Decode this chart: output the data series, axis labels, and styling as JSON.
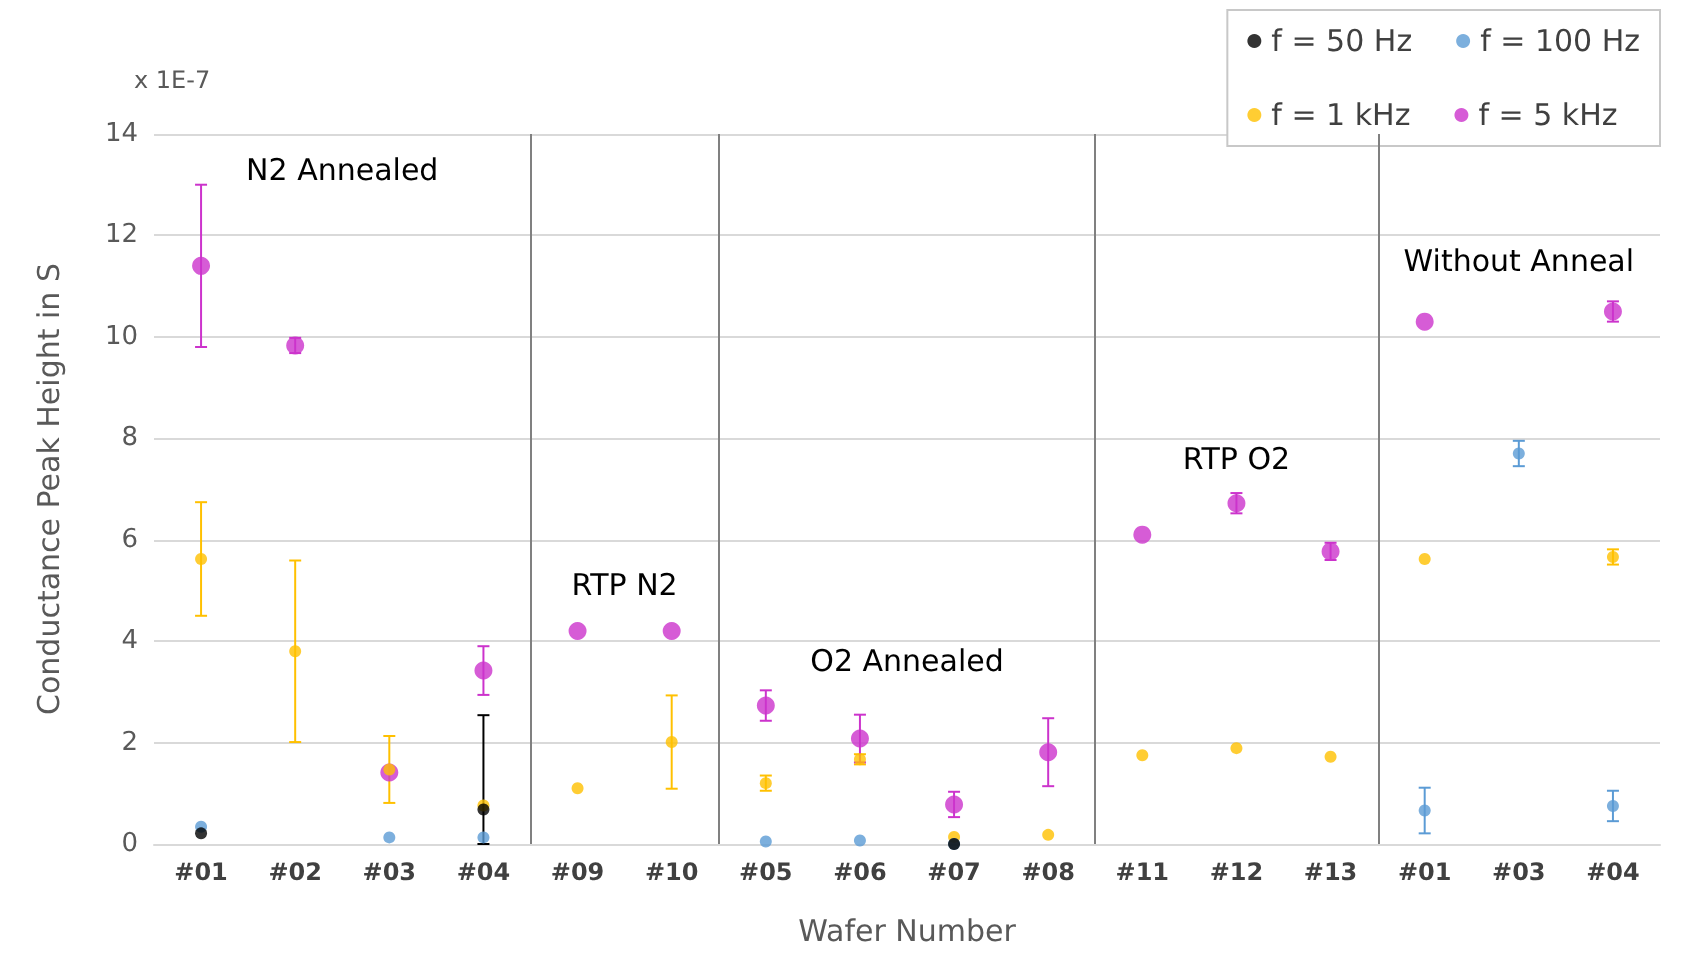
{
  "chart_data": {
    "type": "scatter",
    "xlabel": "Wafer Number",
    "ylabel": "Conductance Peak Height in S",
    "categories": [
      "#01",
      "#02",
      "#03",
      "#04",
      "#09",
      "#10",
      "#05",
      "#06",
      "#07",
      "#08",
      "#11",
      "#12",
      "#13",
      "#01",
      "#03",
      "#04"
    ],
    "series": [
      {
        "name": "f = 50 Hz",
        "color": "#000000",
        "values": [
          0.21,
          null,
          null,
          0.68,
          null,
          null,
          null,
          null,
          0.0,
          null,
          null,
          null,
          null,
          null,
          null,
          null
        ],
        "errors": [
          null,
          null,
          null,
          [
            0,
            2.54
          ],
          null,
          null,
          null,
          null,
          null,
          null,
          null,
          null,
          null,
          null,
          null,
          null
        ]
      },
      {
        "name": "f = 100 Hz",
        "color": "#5b9bd5",
        "values": [
          0.34,
          null,
          0.13,
          0.13,
          null,
          null,
          0.05,
          0.07,
          0.0,
          null,
          null,
          null,
          null,
          0.66,
          7.7,
          0.75
        ],
        "errors": [
          null,
          null,
          null,
          null,
          null,
          null,
          null,
          null,
          null,
          null,
          null,
          null,
          null,
          0.45,
          0.25,
          0.3
        ]
      },
      {
        "name": "f = 1 kHz",
        "color": "#ffc000",
        "values": [
          5.62,
          3.8,
          1.47,
          0.76,
          1.1,
          2.01,
          1.2,
          1.67,
          0.14,
          0.18,
          1.75,
          1.89,
          1.72,
          5.62,
          null,
          5.66
        ],
        "errors": [
          1.12,
          1.79,
          0.66,
          null,
          null,
          0.92,
          0.15,
          0.1,
          null,
          null,
          null,
          null,
          null,
          null,
          null,
          0.15
        ]
      },
      {
        "name": "f = 5 kHz",
        "color": "#cc33cc",
        "values": [
          11.4,
          9.83,
          1.41,
          3.42,
          4.2,
          4.2,
          2.73,
          2.08,
          0.78,
          1.81,
          6.1,
          6.72,
          5.77,
          10.3,
          null,
          10.5
        ],
        "errors": [
          1.6,
          0.15,
          null,
          0.48,
          null,
          null,
          0.3,
          0.47,
          0.25,
          0.67,
          null,
          0.2,
          0.17,
          null,
          null,
          0.2
        ]
      }
    ],
    "ylim": [
      0,
      14
    ],
    "yticks": [
      0,
      2,
      4,
      6,
      8,
      10,
      12,
      14
    ],
    "grid": "y",
    "legend": "top right",
    "marker": "circle",
    "annotations": [
      "x 1E-7",
      "N2 Annealed",
      "RTP N2",
      "O2 Annealed",
      "RTP O2",
      "Without Anneal"
    ]
  }
}
